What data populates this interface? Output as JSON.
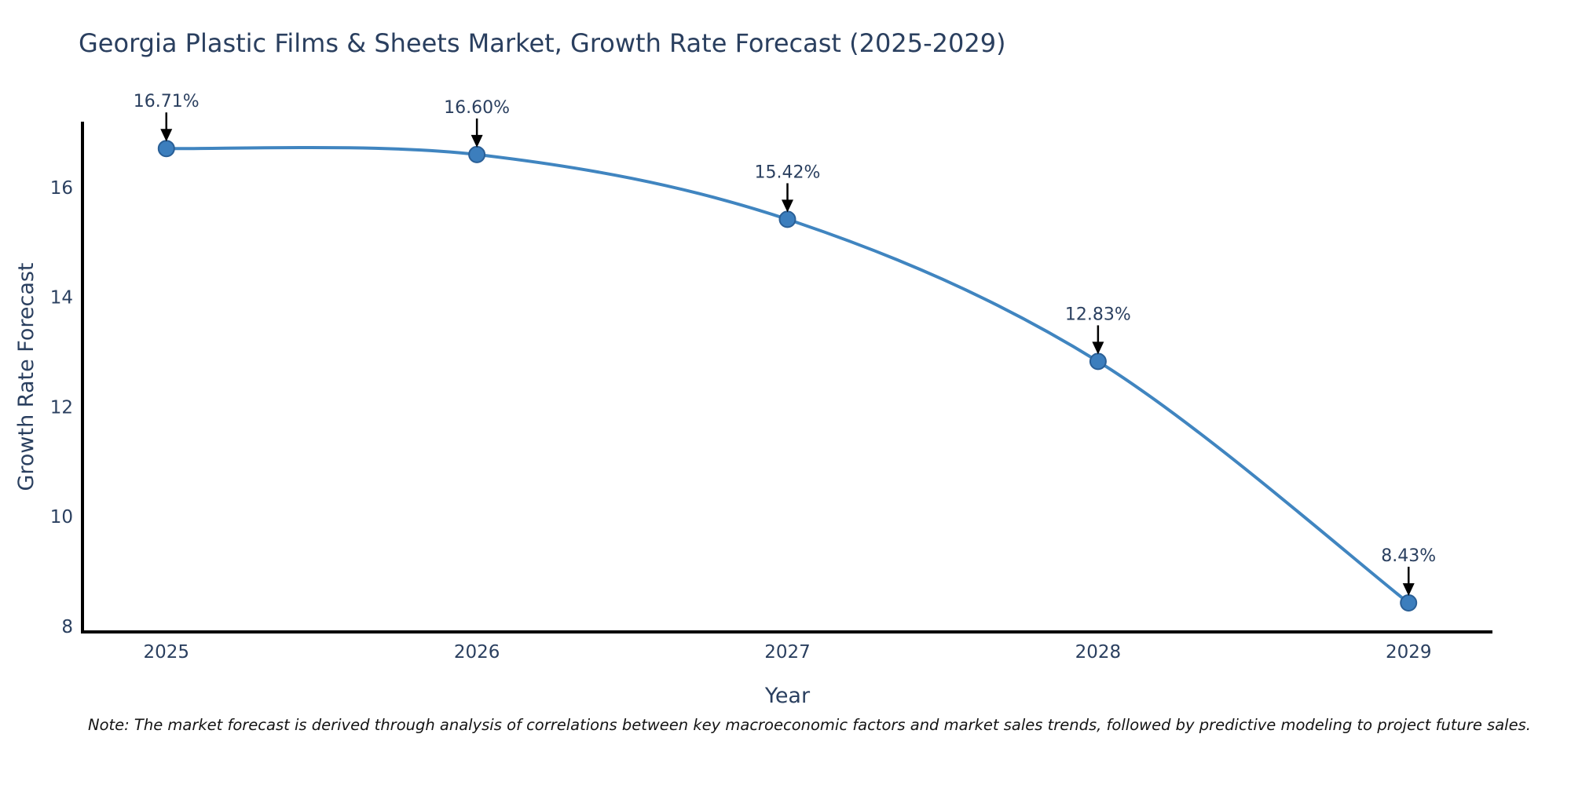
{
  "chart_data": {
    "type": "line",
    "title": "Georgia Plastic Films & Sheets Market, Growth Rate Forecast (2025-2029)",
    "xlabel": "Year",
    "ylabel": "Growth Rate Forecast",
    "x": [
      2025,
      2026,
      2027,
      2028,
      2029
    ],
    "values": [
      16.71,
      16.6,
      15.42,
      12.83,
      8.43
    ],
    "point_labels": [
      "16.71%",
      "16.60%",
      "15.42%",
      "12.83%",
      "8.43%"
    ],
    "xticks": [
      "2025",
      "2026",
      "2027",
      "2028",
      "2029"
    ],
    "yticks": [
      8,
      10,
      12,
      14,
      16
    ],
    "xlim": [
      2024.73,
      2029.27
    ],
    "ylim": [
      7.9,
      17.2
    ],
    "grid": false,
    "legend": "none",
    "curve": "spline",
    "line_color": "#4085c0",
    "marker_color": "#3c7ebd",
    "marker_edge_color": "#2a5f96",
    "axis_color": "#000000",
    "text_color": "#2a3f5f",
    "annotation_arrow_color": "#000000",
    "note": "Note: The market forecast is derived through analysis of correlations between key macroeconomic factors and market sales trends, followed by predictive modeling to project future sales."
  }
}
